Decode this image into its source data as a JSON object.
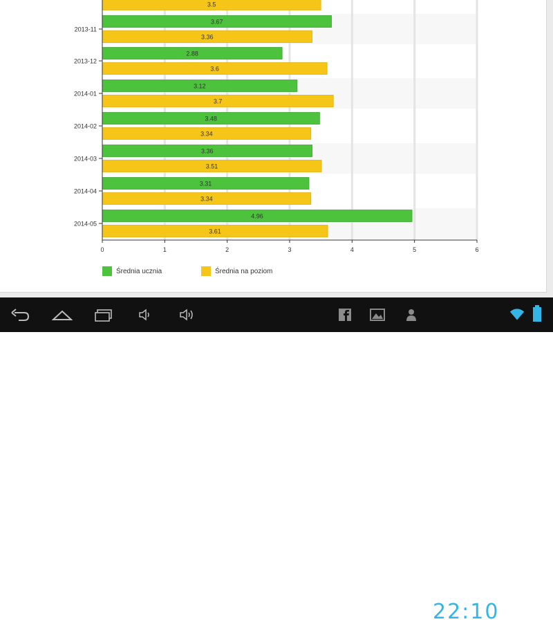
{
  "chart_data": {
    "type": "bar",
    "orientation": "horizontal",
    "categories": [
      "",
      "2013-11",
      "2013-12",
      "2014-01",
      "2014-02",
      "2014-03",
      "2014-04",
      "2014-05"
    ],
    "series": [
      {
        "name": "Średnia ucznia",
        "color": "#4cc23d",
        "values": [
          null,
          3.67,
          2.88,
          3.12,
          3.48,
          3.36,
          3.31,
          4.96
        ]
      },
      {
        "name": "Średnia na poziom",
        "color": "#f5c518",
        "values": [
          3.5,
          3.36,
          3.6,
          3.7,
          3.34,
          3.51,
          3.34,
          3.61
        ]
      }
    ],
    "xlim": [
      0,
      6
    ],
    "xticks": [
      "0",
      "1",
      "2",
      "3",
      "4",
      "5",
      "6"
    ],
    "grid": true,
    "legend_position": "bottom-left"
  },
  "legend": {
    "items": [
      {
        "label": "Średnia ucznia",
        "color": "#4cc23d"
      },
      {
        "label": "Średnia na poziom",
        "color": "#f5c518"
      }
    ]
  },
  "navbar": {
    "buttons": [
      "back-icon",
      "home-icon",
      "recent-apps-icon",
      "volume-down-icon",
      "volume-up-icon"
    ],
    "status_icons": [
      "facebook-icon",
      "gallery-icon",
      "person-icon"
    ],
    "time": "22:10",
    "accent": "#33b5e5"
  }
}
